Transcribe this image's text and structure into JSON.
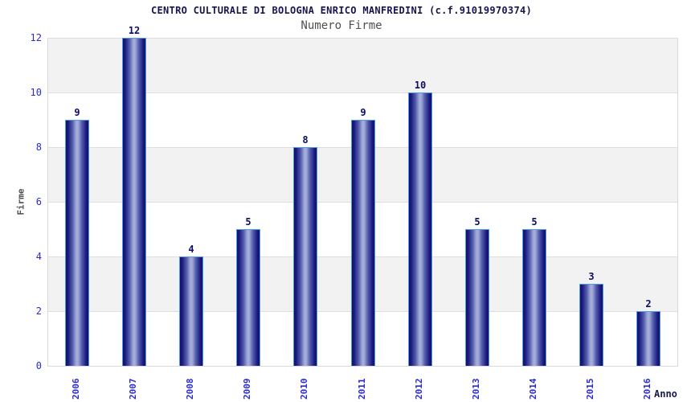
{
  "header": {
    "title": "CENTRO CULTURALE DI BOLOGNA ENRICO MANFREDINI (c.f.91019970374)",
    "subtitle": "Numero Firme"
  },
  "chart_data": {
    "type": "bar",
    "title": "CENTRO CULTURALE DI BOLOGNA ENRICO MANFREDINI (c.f.91019970374)",
    "subtitle": "Numero Firme",
    "categories": [
      "2006",
      "2007",
      "2008",
      "2009",
      "2010",
      "2011",
      "2012",
      "2013",
      "2014",
      "2015",
      "2016"
    ],
    "values": [
      9,
      12,
      4,
      5,
      8,
      9,
      10,
      5,
      5,
      3,
      2
    ],
    "xlabel": "Anno",
    "ylabel": "Firme",
    "ylim": [
      0,
      12
    ],
    "yticks": [
      0,
      2,
      4,
      6,
      8,
      10,
      12
    ],
    "grid": "horizontal-bands-alternating",
    "legend_position": "none",
    "colors": {
      "title_text": "#16164e",
      "subtitle_text": "#4f4f4f",
      "axis_tick_text": "#2a2ad2",
      "bar_value_text": "#0d0d64",
      "bar_dark": "#10106b",
      "bar_highlight": "#a9b1dd",
      "bar_outline": "#4d9be8",
      "band_gray": "#f2f2f2",
      "band_white": "#ffffff",
      "grid_line": "#dedede",
      "plot_border": "#d9d9d9"
    }
  }
}
